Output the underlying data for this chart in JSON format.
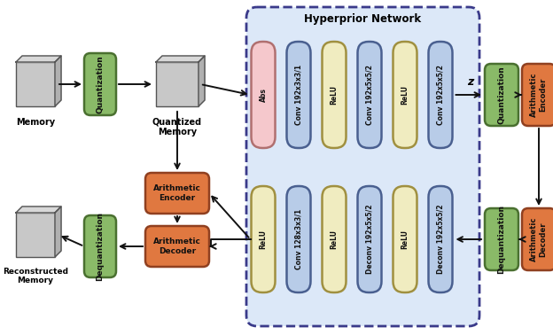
{
  "title": "Hyperprior Network",
  "fig_bg": "#ffffff",
  "hp_bg": "#dce8f8",
  "hp_border": "#3a3a8a",
  "encoder_pills": [
    {
      "label": "Abs",
      "color": "#f5c8cc",
      "border": "#b07070"
    },
    {
      "label": "Conv 192x3x3/1",
      "color": "#b8cce8",
      "border": "#4a6090"
    },
    {
      "label": "ReLU",
      "color": "#f0ecc0",
      "border": "#a09040"
    },
    {
      "label": "Conv 192x5x5/2",
      "color": "#b8cce8",
      "border": "#4a6090"
    },
    {
      "label": "ReLU",
      "color": "#f0ecc0",
      "border": "#a09040"
    },
    {
      "label": "Conv 192x5x5/2",
      "color": "#b8cce8",
      "border": "#4a6090"
    }
  ],
  "decoder_pills": [
    {
      "label": "ReLU",
      "color": "#f0ecc0",
      "border": "#a09040"
    },
    {
      "label": "Conv 128x3x3/1",
      "color": "#b8cce8",
      "border": "#4a6090"
    },
    {
      "label": "ReLU",
      "color": "#f0ecc0",
      "border": "#a09040"
    },
    {
      "label": "Deconv 192x5x5/2",
      "color": "#b8cce8",
      "border": "#4a6090"
    },
    {
      "label": "ReLU",
      "color": "#f0ecc0",
      "border": "#a09040"
    },
    {
      "label": "Deconv 192x5x5/2",
      "color": "#b8cce8",
      "border": "#4a6090"
    }
  ],
  "green_color": "#8aba68",
  "green_border": "#4a7030",
  "orange_color": "#e07840",
  "orange_border": "#904020",
  "box3d_face": "#c8c8c8",
  "box3d_top": "#d8d8d8",
  "box3d_side": "#b0b0b0",
  "box3d_edge": "#555555"
}
